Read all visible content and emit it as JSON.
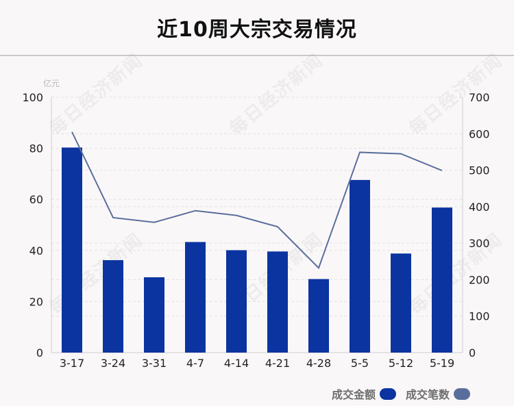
{
  "title": "近10周大宗交易情况",
  "watermark": "每日经济新闻",
  "colors": {
    "bar": "#0b34a0",
    "line": "#5a6e9c",
    "grid": "#e6e1e3",
    "axis": "#cfcfcf"
  },
  "chart_data": {
    "type": "bar",
    "title": "近10周大宗交易情况",
    "y_unit_label": "亿元",
    "categories": [
      "3-17",
      "3-24",
      "3-31",
      "4-7",
      "4-14",
      "4-21",
      "4-28",
      "5-5",
      "5-12",
      "5-19"
    ],
    "series": [
      {
        "name": "成交金额",
        "type": "bar",
        "axis": "left",
        "values": [
          80.3,
          36.2,
          29.5,
          43.3,
          40.1,
          39.6,
          28.8,
          67.6,
          38.8,
          56.8
        ]
      },
      {
        "name": "成交笔数",
        "type": "line",
        "axis": "right",
        "values": [
          605,
          370,
          357,
          389,
          376,
          345,
          232,
          549,
          545,
          499
        ]
      }
    ],
    "y_left": {
      "min": 0,
      "max": 100,
      "ticks": [
        0,
        20,
        40,
        60,
        80,
        100
      ]
    },
    "y_right": {
      "min": 0,
      "max": 700,
      "ticks": [
        0,
        100,
        200,
        300,
        400,
        500,
        600,
        700
      ]
    },
    "grid": true,
    "legend": "bottom-right"
  }
}
